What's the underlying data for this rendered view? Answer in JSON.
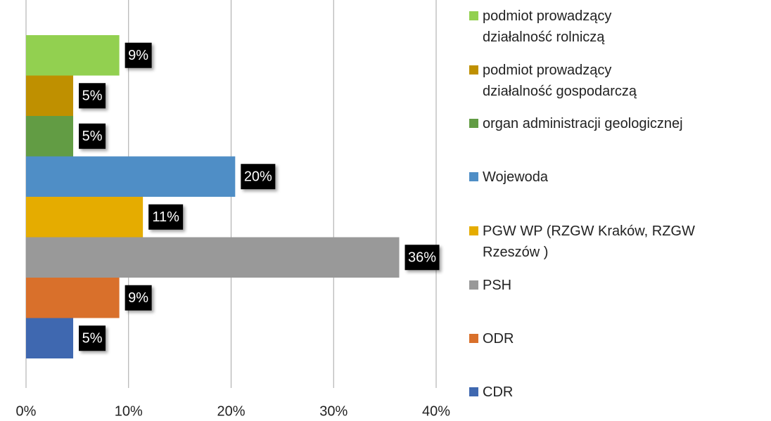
{
  "chart_data": {
    "type": "hbar",
    "series": [
      {
        "name": "podmiot prowadzący działalność rolniczą",
        "color": "#92d050",
        "values": [
          9.1
        ],
        "value_labels": [
          "9%"
        ]
      },
      {
        "name": "podmiot prowadzący działalność gospodarczą",
        "color": "#bf9000",
        "values": [
          4.6
        ],
        "value_labels": [
          "5%"
        ]
      },
      {
        "name": "organ administracji geologicznej",
        "color": "#629c44",
        "values": [
          4.6
        ],
        "value_labels": [
          "5%"
        ]
      },
      {
        "name": "Wojewoda",
        "color": "#4f8ec6",
        "values": [
          20.4
        ],
        "value_labels": [
          "20%"
        ]
      },
      {
        "name": "PGW WP (RZGW Kraków, RZGW Rzeszów )",
        "color": "#e5ac00",
        "values": [
          11.4
        ],
        "value_labels": [
          "11%"
        ]
      },
      {
        "name": "PSH",
        "color": "#999999",
        "values": [
          36.4
        ],
        "value_labels": [
          "36%"
        ]
      },
      {
        "name": "ODR",
        "color": "#d9702b",
        "values": [
          9.1
        ],
        "value_labels": [
          "9%"
        ]
      },
      {
        "name": "CDR",
        "color": "#3f68b0",
        "values": [
          4.6
        ],
        "value_labels": [
          "5%"
        ]
      }
    ],
    "xlim": [
      0,
      40
    ],
    "xticks": [
      {
        "value": 0,
        "label": "0%"
      },
      {
        "value": 10,
        "label": "10%"
      },
      {
        "value": 20,
        "label": "20%"
      },
      {
        "value": 30,
        "label": "30%"
      },
      {
        "value": 40,
        "label": "40%"
      }
    ],
    "grid": true,
    "legend": "right"
  }
}
